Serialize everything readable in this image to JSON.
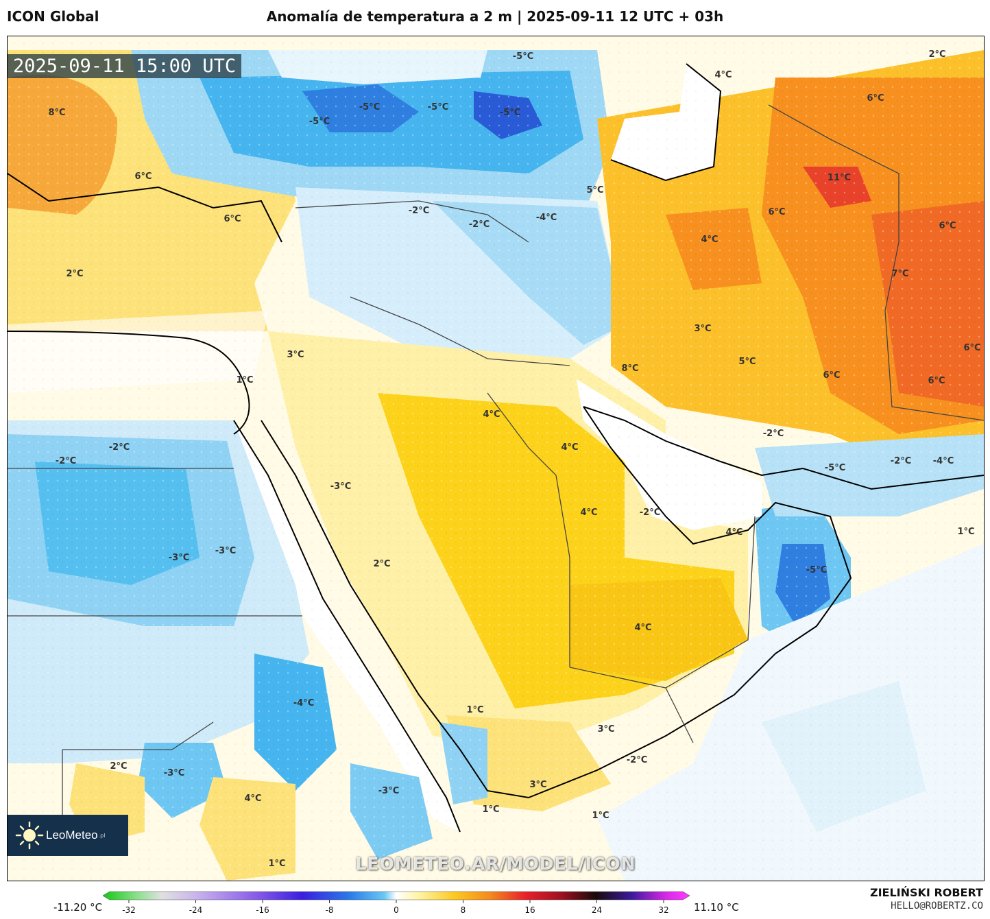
{
  "header": {
    "model": "ICON Global",
    "title": "Anomalía de temperatura a 2 m | 2025-09-11 12 UTC + 03h"
  },
  "map": {
    "valid_time": "2025-09-11 15:00 UTC",
    "watermark": "LEOMETEO.AR/MODEL/ICON",
    "logo": {
      "brand": "LeoMeteo",
      "suffix": ".pl",
      "icon": "sun-logo-icon"
    },
    "labels": [
      {
        "text": "-5°C"
      },
      {
        "text": "-5°C"
      },
      {
        "text": "-5°C"
      },
      {
        "text": "-5°C"
      },
      {
        "text": "-5°C"
      },
      {
        "text": "8°C"
      },
      {
        "text": "6°C"
      },
      {
        "text": "6°C"
      },
      {
        "text": "2°C"
      },
      {
        "text": "-2°C"
      },
      {
        "text": "-2°C"
      },
      {
        "text": "-4°C"
      },
      {
        "text": "5°C"
      },
      {
        "text": "4°C"
      },
      {
        "text": "2°C"
      },
      {
        "text": "6°C"
      },
      {
        "text": "11°C"
      },
      {
        "text": "6°C"
      },
      {
        "text": "4°C"
      },
      {
        "text": "6°C"
      },
      {
        "text": "7°C"
      },
      {
        "text": "3°C"
      },
      {
        "text": "5°C"
      },
      {
        "text": "6°C"
      },
      {
        "text": "6°C"
      },
      {
        "text": "6°C"
      },
      {
        "text": "8°C"
      },
      {
        "text": "3°C"
      },
      {
        "text": "1°C"
      },
      {
        "text": "4°C"
      },
      {
        "text": "4°C"
      },
      {
        "text": "-2°C"
      },
      {
        "text": "-2°C"
      },
      {
        "text": "-2°C"
      },
      {
        "text": "-5°C"
      },
      {
        "text": "-2°C"
      },
      {
        "text": "-4°C"
      },
      {
        "text": "-3°C"
      },
      {
        "text": "4°C"
      },
      {
        "text": "-2°C"
      },
      {
        "text": "4°C"
      },
      {
        "text": "1°C"
      },
      {
        "text": "-5°C"
      },
      {
        "text": "-3°C"
      },
      {
        "text": "-3°C"
      },
      {
        "text": "2°C"
      },
      {
        "text": "4°C"
      },
      {
        "text": "-4°C"
      },
      {
        "text": "1°C"
      },
      {
        "text": "3°C"
      },
      {
        "text": "-2°C"
      },
      {
        "text": "2°C"
      },
      {
        "text": "-3°C"
      },
      {
        "text": "4°C"
      },
      {
        "text": "-3°C"
      },
      {
        "text": "3°C"
      },
      {
        "text": "1°C"
      },
      {
        "text": "1°C"
      },
      {
        "text": "1°C"
      }
    ]
  },
  "legend": {
    "min_label": "-11.20 °C",
    "max_label": "11.10 °C",
    "ticks": [
      "-32",
      "-24",
      "-16",
      "-8",
      "0",
      "8",
      "16",
      "24",
      "32"
    ],
    "colors": {
      "cold_deep": "#1e5fd8",
      "cold": "#3fb4ee",
      "cool": "#bfe6f8",
      "neutral": "#ffffff",
      "warm_light": "#fff2b0",
      "warm": "#fcd21a",
      "hot": "#f6a623",
      "very_hot": "#ef6a24"
    }
  },
  "footer": {
    "author": "ZIELIŃSKI ROBERT",
    "email": "HELLO@ROBERTZ.CO"
  }
}
